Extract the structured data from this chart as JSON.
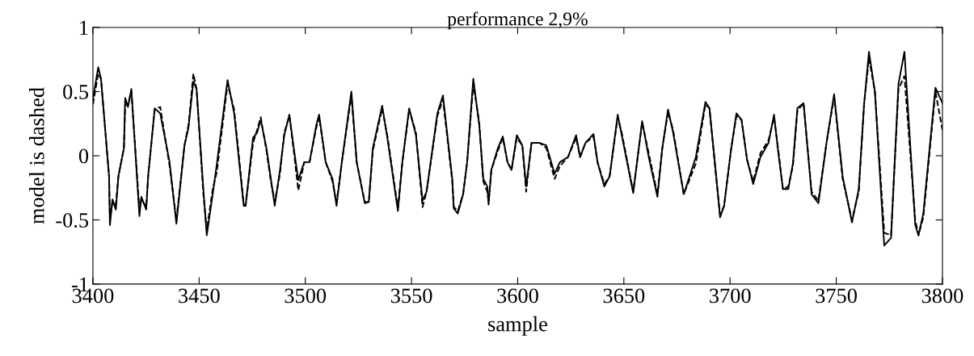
{
  "chart_data": {
    "type": "line",
    "title": "performance 2,9%",
    "xlabel": "sample",
    "ylabel": "model is dashed",
    "xlim": [
      3400,
      3800
    ],
    "xticks": [
      3400,
      3450,
      3500,
      3550,
      3600,
      3650,
      3700,
      3750,
      3800
    ],
    "ylim": [
      -1,
      1
    ],
    "yticks": [
      {
        "value": -1,
        "label": "-1"
      },
      {
        "value": -0.5,
        "label": "-0.5"
      },
      0,
      0.5,
      1
    ],
    "grid": false,
    "legend": false,
    "marker": "none",
    "series": [
      {
        "color": "#000000",
        "line_style": "solid",
        "x": [
          3400,
          3402.5,
          3403.8,
          3407.6,
          3408,
          3409.2,
          3410.8,
          3412,
          3414.6,
          3415.2,
          3416.5,
          3418.1,
          3421.9,
          3422.8,
          3425.1,
          3426,
          3429.1,
          3431.7,
          3436.1,
          3439.3,
          3443.1,
          3445,
          3447.3,
          3448.8,
          3452,
          3453.6,
          3456.4,
          3458.3,
          3463.4,
          3466.5,
          3471,
          3471.9,
          3475.4,
          3477.3,
          3479,
          3481.7,
          3483.7,
          3485.6,
          3488.1,
          3490.1,
          3492.5,
          3494.4,
          3496.7,
          3499.5,
          3502,
          3505.2,
          3506.5,
          3509.6,
          3512.8,
          3514.7,
          3517.2,
          3521.7,
          3524.2,
          3528,
          3529.9,
          3531.8,
          3536.2,
          3538.8,
          3543.6,
          3545.7,
          3548.9,
          3552.1,
          3555.2,
          3557.1,
          3562.2,
          3564.8,
          3569.2,
          3569.9,
          3571.8,
          3574.3,
          3576.2,
          3579.1,
          3581.9,
          3583.8,
          3585.7,
          3586.3,
          3587.6,
          3590.7,
          3593,
          3595.2,
          3597.1,
          3599.6,
          3602.2,
          3604,
          3606.5,
          3610.4,
          3613.5,
          3617.4,
          3619.9,
          3623.7,
          3627.5,
          3629.4,
          3631.9,
          3635.7,
          3637.6,
          3640.8,
          3643.3,
          3647.1,
          3649,
          3654.4,
          3658.6,
          3661.7,
          3665.8,
          3668.1,
          3670.8,
          3673.2,
          3678.2,
          3683.9,
          3688.4,
          3690.3,
          3693.5,
          3695.3,
          3697.2,
          3700.4,
          3703,
          3705.4,
          3708,
          3710.9,
          3714.3,
          3718.1,
          3720.7,
          3722.6,
          3724.9,
          3727.4,
          3729.6,
          3731.7,
          3734.6,
          3738.4,
          3741.6,
          3745.4,
          3749,
          3753,
          3757.4,
          3760.6,
          3763.1,
          3765.4,
          3768.2,
          3772.6,
          3775.8,
          3779.3,
          3782.1,
          3787.2,
          3788.7,
          3791,
          3796.7,
          3800
        ],
        "values": [
          0.44,
          0.69,
          0.6,
          -0.16,
          -0.54,
          -0.34,
          -0.42,
          -0.16,
          0.06,
          0.45,
          0.38,
          0.52,
          -0.47,
          -0.32,
          -0.42,
          -0.16,
          0.37,
          0.33,
          -0.05,
          -0.53,
          0.08,
          0.22,
          0.58,
          0.52,
          -0.26,
          -0.62,
          -0.3,
          -0.07,
          0.59,
          0.33,
          -0.39,
          -0.39,
          0.14,
          0.18,
          0.28,
          0.06,
          -0.17,
          -0.39,
          -0.11,
          0.16,
          0.32,
          0.08,
          -0.19,
          -0.05,
          -0.05,
          0.24,
          0.32,
          -0.05,
          -0.18,
          -0.39,
          -0.05,
          0.5,
          -0.05,
          -0.37,
          -0.36,
          0.06,
          0.39,
          0.12,
          -0.43,
          -0.05,
          0.37,
          0.16,
          -0.35,
          -0.28,
          0.33,
          0.47,
          -0.18,
          -0.41,
          -0.45,
          -0.3,
          -0.05,
          0.6,
          0.24,
          -0.18,
          -0.24,
          -0.38,
          -0.11,
          0.06,
          0.15,
          -0.05,
          -0.11,
          0.16,
          0.08,
          -0.24,
          0.1,
          0.1,
          0.08,
          -0.14,
          -0.05,
          -0.01,
          0.16,
          -0.01,
          0.1,
          0.17,
          -0.05,
          -0.24,
          -0.16,
          0.32,
          0.16,
          -0.29,
          0.27,
          -0.01,
          -0.32,
          0.06,
          0.36,
          0.18,
          -0.3,
          -0.01,
          0.42,
          0.37,
          -0.16,
          -0.48,
          -0.39,
          0.04,
          0.33,
          0.28,
          -0.03,
          -0.22,
          -0.01,
          0.1,
          0.32,
          0.04,
          -0.26,
          -0.26,
          -0.06,
          0.37,
          0.41,
          -0.3,
          -0.37,
          0.1,
          0.48,
          -0.16,
          -0.52,
          -0.26,
          0.4,
          0.81,
          0.5,
          -0.7,
          -0.64,
          0.56,
          0.81,
          -0.54,
          -0.62,
          -0.45,
          0.53,
          0.41
        ]
      },
      {
        "color": "#000000",
        "line_style": "dashed",
        "x": [
          3400,
          3402.5,
          3403.8,
          3407.6,
          3408,
          3409.2,
          3410.8,
          3412,
          3414.6,
          3415.2,
          3416.5,
          3418.1,
          3421.9,
          3422.8,
          3425.1,
          3426,
          3429.1,
          3431.7,
          3436.1,
          3439.3,
          3443.1,
          3445,
          3447.3,
          3448.8,
          3452,
          3453.6,
          3456.4,
          3458.3,
          3463.4,
          3466.5,
          3471,
          3471.9,
          3475.4,
          3477.3,
          3479,
          3481.7,
          3483.7,
          3485.6,
          3488.1,
          3490.1,
          3492.5,
          3494.4,
          3496.7,
          3499.5,
          3502,
          3505.2,
          3506.5,
          3509.6,
          3512.8,
          3514.7,
          3517.2,
          3521.7,
          3524.2,
          3528,
          3529.9,
          3531.8,
          3536.2,
          3538.8,
          3543.6,
          3545.7,
          3548.9,
          3552.1,
          3555.2,
          3557.1,
          3562.2,
          3564.8,
          3569.2,
          3569.9,
          3571.8,
          3574.3,
          3576.2,
          3579.1,
          3581.9,
          3583.8,
          3585.7,
          3586.3,
          3587.6,
          3590.7,
          3593,
          3595.2,
          3597.1,
          3599.6,
          3602.2,
          3604,
          3606.5,
          3610.4,
          3613.5,
          3617.4,
          3619.9,
          3623.7,
          3627.5,
          3629.4,
          3631.9,
          3635.7,
          3637.6,
          3640.8,
          3643.3,
          3647.1,
          3649,
          3654.4,
          3658.6,
          3661.7,
          3665.8,
          3668.1,
          3670.8,
          3673.2,
          3678.2,
          3683.9,
          3688.4,
          3690.3,
          3693.5,
          3695.3,
          3697.2,
          3700.4,
          3703,
          3705.4,
          3708,
          3710.9,
          3714.3,
          3718.1,
          3720.7,
          3722.6,
          3724.9,
          3727.4,
          3729.6,
          3731.7,
          3734.6,
          3738.4,
          3741.6,
          3745.4,
          3749,
          3753,
          3757.4,
          3760.6,
          3763.1,
          3765.4,
          3768.2,
          3772.6,
          3775.8,
          3779.3,
          3782.1,
          3787.2,
          3788.7,
          3791,
          3796.7,
          3800
        ],
        "values": [
          0.4,
          0.64,
          0.6,
          -0.16,
          -0.5,
          -0.36,
          -0.38,
          -0.16,
          0.06,
          0.4,
          0.4,
          0.5,
          -0.42,
          -0.34,
          -0.4,
          -0.16,
          0.36,
          0.38,
          -0.08,
          -0.5,
          0.08,
          0.24,
          0.64,
          0.52,
          -0.3,
          -0.58,
          -0.26,
          -0.13,
          0.56,
          0.36,
          -0.37,
          -0.39,
          0.1,
          0.2,
          0.3,
          0.04,
          -0.19,
          -0.36,
          -0.14,
          0.18,
          0.31,
          0.06,
          -0.27,
          -0.05,
          -0.05,
          0.22,
          0.3,
          -0.05,
          -0.2,
          -0.37,
          -0.05,
          0.47,
          -0.05,
          -0.36,
          -0.36,
          0.04,
          0.37,
          0.14,
          -0.41,
          -0.05,
          0.36,
          0.18,
          -0.4,
          -0.28,
          0.31,
          0.44,
          -0.2,
          -0.4,
          -0.43,
          -0.3,
          -0.05,
          0.56,
          0.26,
          -0.2,
          -0.28,
          -0.36,
          -0.11,
          0.04,
          0.14,
          -0.05,
          -0.11,
          0.14,
          0.08,
          -0.28,
          0.1,
          0.1,
          0.06,
          -0.18,
          -0.08,
          -0.01,
          0.14,
          -0.01,
          0.1,
          0.15,
          -0.05,
          -0.22,
          -0.16,
          0.3,
          0.18,
          -0.28,
          0.26,
          0.02,
          -0.3,
          0.06,
          0.34,
          0.2,
          -0.3,
          -0.06,
          0.4,
          0.37,
          -0.18,
          -0.46,
          -0.39,
          0.04,
          0.31,
          0.28,
          -0.03,
          -0.2,
          0.02,
          0.12,
          0.3,
          0.06,
          -0.26,
          -0.24,
          -0.08,
          0.35,
          0.41,
          -0.28,
          -0.35,
          0.1,
          0.46,
          -0.18,
          -0.5,
          -0.28,
          0.4,
          0.76,
          0.5,
          -0.6,
          -0.62,
          0.52,
          0.62,
          -0.5,
          -0.62,
          -0.48,
          0.5,
          0.2
        ]
      }
    ]
  }
}
